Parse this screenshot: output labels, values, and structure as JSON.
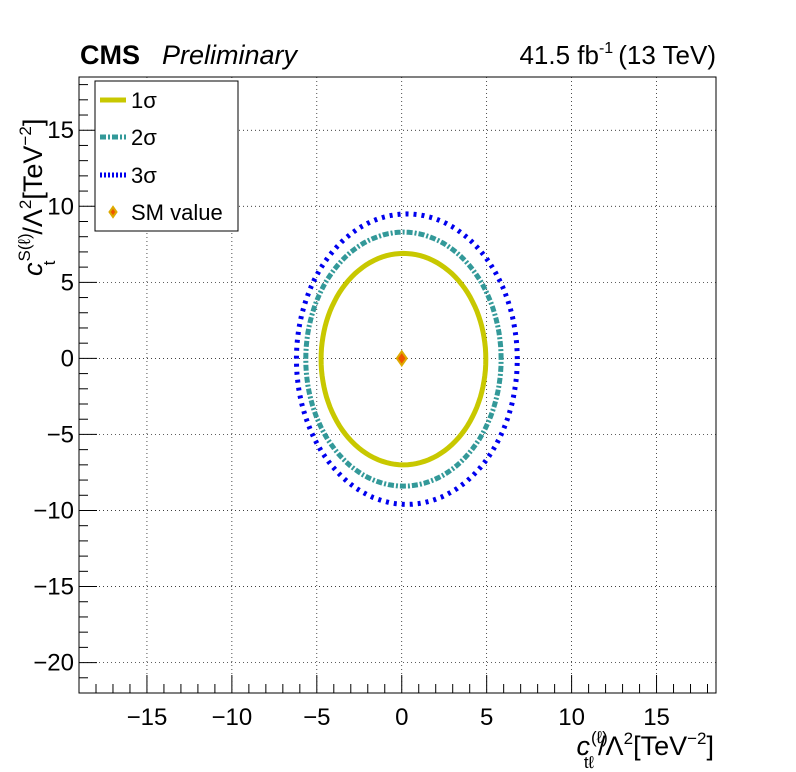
{
  "header": {
    "experiment": "CMS",
    "status": "Preliminary",
    "luminosity": "41.5 fb",
    "lumi_exp": "-1",
    "energy": "(13 TeV)"
  },
  "colors": {
    "one_sigma": "#c8c800",
    "two_sigma": "#339999",
    "three_sigma": "#0000ee",
    "sm_fill": "#ee5500",
    "sm_edge": "#ddaa00"
  },
  "chart_data": {
    "type": "scatter",
    "xlabel": "c_{tℓ}^{(ℓ)}/Λ²[TeV⁻²]",
    "ylabel": "c_t^{S(ℓ)}/Λ²[TeV⁻²]",
    "xlim": [
      -19,
      18.5
    ],
    "ylim": [
      -22,
      18.5
    ],
    "x_ticks": [
      -15,
      -10,
      -5,
      0,
      5,
      10,
      15
    ],
    "y_ticks": [
      -20,
      -15,
      -10,
      -5,
      0,
      5,
      10,
      15
    ],
    "x_tick_labels": [
      "−15",
      "−10",
      "−5",
      "0",
      "5",
      "10",
      "15"
    ],
    "y_tick_labels": [
      "−20",
      "−15",
      "−10",
      "−5",
      "0",
      "5",
      "10",
      "15"
    ],
    "grid": true,
    "legend_position": "top-left",
    "series": [
      {
        "name": "1σ",
        "style": "solid",
        "center": [
          0.1,
          -0.05
        ],
        "semi_axes": [
          4.85,
          6.95
        ]
      },
      {
        "name": "2σ",
        "style": "dashed",
        "center": [
          0.1,
          -0.05
        ],
        "semi_axes": [
          5.75,
          8.35
        ]
      },
      {
        "name": "3σ",
        "style": "dotted",
        "center": [
          0.3,
          -0.05
        ],
        "semi_axes": [
          6.5,
          9.55
        ]
      }
    ],
    "points": [
      {
        "name": "SM value",
        "x": 0,
        "y": 0
      }
    ]
  }
}
